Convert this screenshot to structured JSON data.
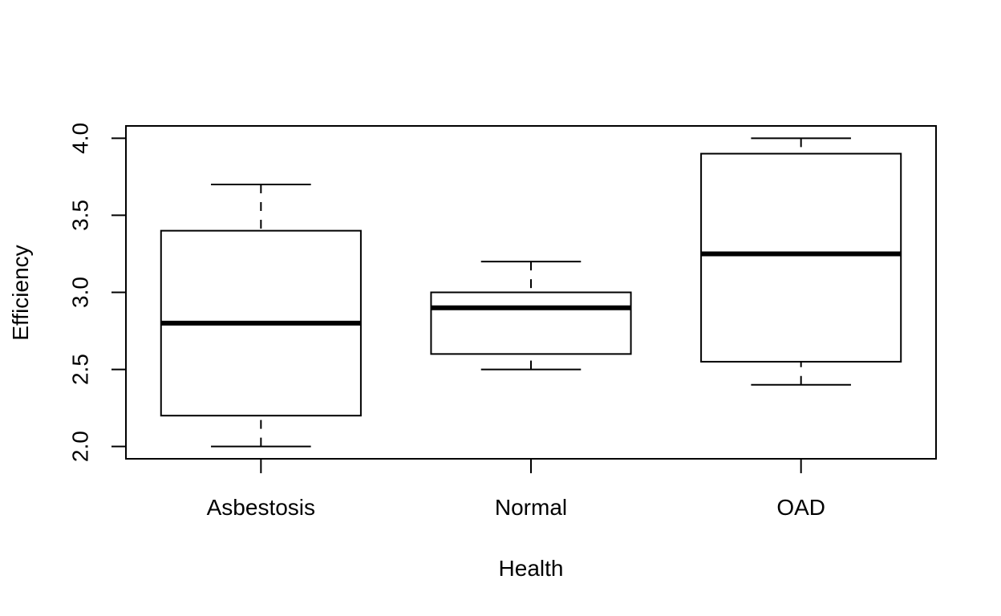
{
  "chart_data": {
    "type": "boxplot",
    "title": "",
    "xlabel": "Health",
    "ylabel": "Efficiency",
    "categories": [
      "Asbestosis",
      "Normal",
      "OAD"
    ],
    "boxes": [
      {
        "category": "Asbestosis",
        "whisker_low": 2.0,
        "q1": 2.2,
        "median": 2.8,
        "q3": 3.4,
        "whisker_high": 3.7
      },
      {
        "category": "Normal",
        "whisker_low": 2.5,
        "q1": 2.6,
        "median": 2.9,
        "q3": 3.0,
        "whisker_high": 3.2
      },
      {
        "category": "OAD",
        "whisker_low": 2.4,
        "q1": 2.55,
        "median": 3.25,
        "q3": 3.9,
        "whisker_high": 4.0
      }
    ],
    "y_ticks": [
      "2.0",
      "2.5",
      "3.0",
      "3.5",
      "4.0"
    ],
    "ylim": [
      1.92,
      4.08
    ],
    "grid": false,
    "legend": "none"
  }
}
